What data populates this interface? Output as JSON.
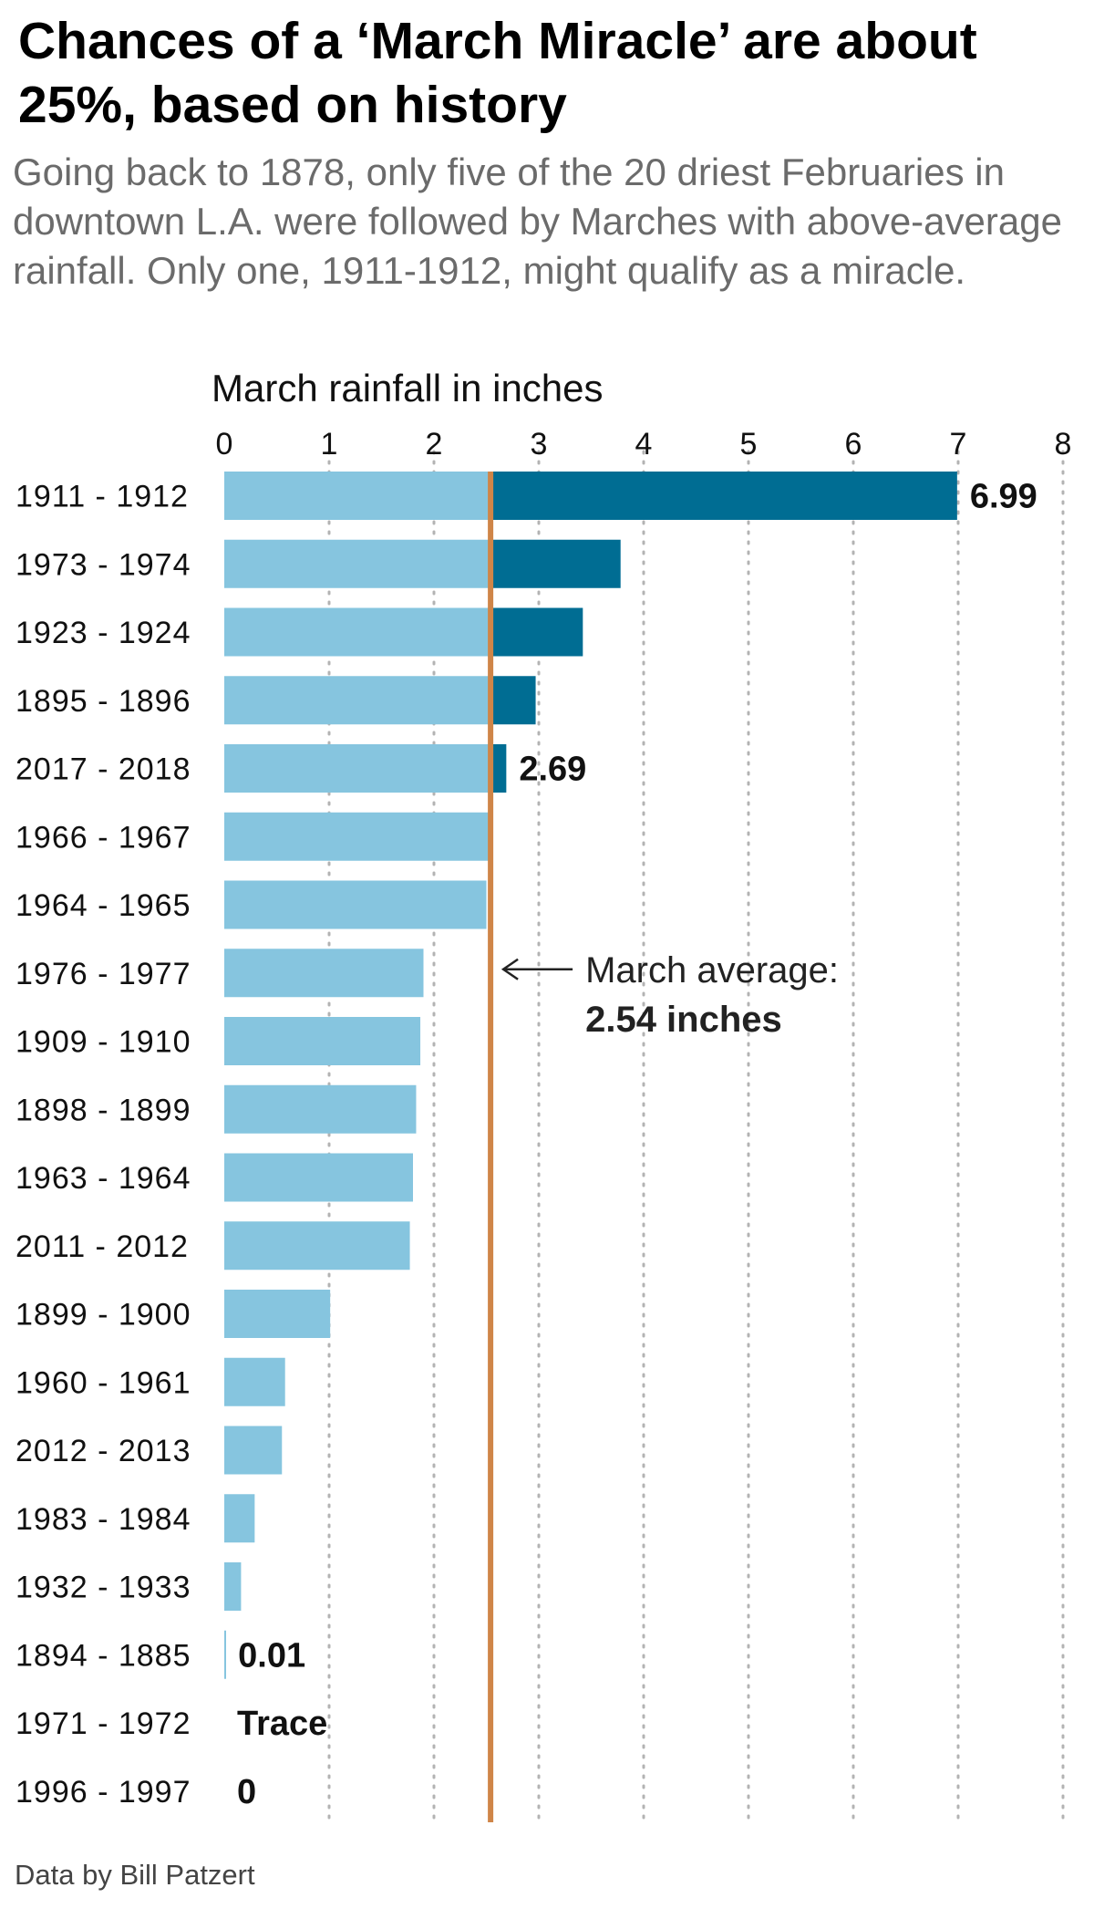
{
  "title": "Chances of a ‘March Miracle’ are about 25%, based on history",
  "subtitle": "Going back to 1878, only five of the 20 driest Februaries in downtown L.A. were followed by Marches with above-average rainfall. Only one, 1911-1912, might qualify as a miracle.",
  "source": "Data by Bill Patzert",
  "chart_data": {
    "type": "bar",
    "orientation": "horizontal",
    "xlabel": "March rainfall in inches",
    "xlim": [
      0,
      8
    ],
    "xticks": [
      "0",
      "1",
      "2",
      "3",
      "4",
      "5",
      "6",
      "7",
      "8"
    ],
    "grid": "vertical dotted",
    "categories": [
      "1911 - 1912",
      "1973 - 1974",
      "1923 - 1924",
      "1895 - 1896",
      "2017 - 2018",
      "1966 - 1967",
      "1964 - 1965",
      "1976 - 1977",
      "1909 - 1910",
      "1898 - 1899",
      "1963 - 1964",
      "2011 - 2012",
      "1899 - 1900",
      "1960 - 1961",
      "2012 - 2013",
      "1983 - 1984",
      "1932 - 1933",
      "1894 - 1885",
      "1971 - 1972",
      "1996 - 1997"
    ],
    "values": [
      6.99,
      3.78,
      3.42,
      2.97,
      2.69,
      2.52,
      2.5,
      1.9,
      1.87,
      1.83,
      1.8,
      1.77,
      1.01,
      0.58,
      0.55,
      0.29,
      0.16,
      0.01,
      0,
      0
    ],
    "data_labels": [
      "6.99",
      "",
      "",
      "",
      "2.69",
      "",
      "",
      "",
      "",
      "",
      "",
      "",
      "",
      "",
      "",
      "",
      "",
      "0.01",
      "Trace",
      "0"
    ],
    "reference_line": {
      "value": 2.54,
      "label": "March average:",
      "value_label": "2.54 inches"
    },
    "colors": {
      "below_average": "#86c5df",
      "above_average": "#006d93",
      "average_line": "#cf8548",
      "grid": "#b3b3b3"
    }
  }
}
